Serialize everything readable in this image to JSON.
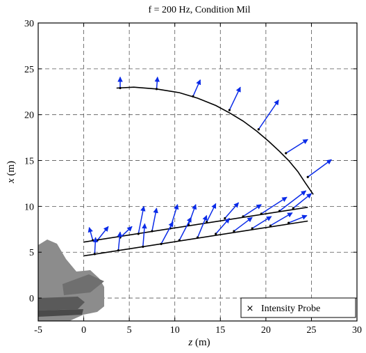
{
  "chart_data": {
    "type": "scatter",
    "title": "f = 200 Hz, Condition Mil",
    "xlabel_var": "z",
    "xlabel_unit": "(m)",
    "ylabel_var": "x",
    "ylabel_unit": "(m)",
    "xlim": [
      -5,
      30
    ],
    "ylim": [
      -2.5,
      30
    ],
    "xticks": [
      -5,
      0,
      5,
      10,
      15,
      20,
      25,
      30
    ],
    "yticks": [
      0,
      5,
      10,
      15,
      20,
      25,
      30
    ],
    "grid": true,
    "legend": {
      "label": "Intensity Probe",
      "marker": "×",
      "placement": "bottom-right"
    },
    "colors": {
      "vector": "#0a2be8",
      "line": "#000000",
      "grid": "#555555",
      "aircraft": "#8c8c8c"
    },
    "arc_array": [
      [
        3.6,
        22.9
      ],
      [
        5.5,
        23.0
      ],
      [
        8.0,
        22.8
      ],
      [
        10.5,
        22.4
      ],
      [
        12.5,
        21.8
      ],
      [
        14.5,
        21.0
      ],
      [
        16.0,
        20.2
      ],
      [
        17.5,
        19.3
      ],
      [
        19.0,
        18.2
      ],
      [
        20.3,
        17.1
      ],
      [
        21.5,
        16.0
      ],
      [
        22.5,
        15.0
      ],
      [
        23.5,
        13.8
      ],
      [
        24.3,
        12.6
      ],
      [
        25.2,
        11.3
      ]
    ],
    "upper_array": [
      [
        0.0,
        6.1
      ],
      [
        24.6,
        9.9
      ]
    ],
    "lower_array": [
      [
        0.0,
        4.6
      ],
      [
        24.6,
        8.4
      ]
    ],
    "vectors": [
      {
        "z": 4.0,
        "x": 22.9,
        "dz": 0.0,
        "dx": 1.2
      },
      {
        "z": 8.0,
        "x": 22.8,
        "dz": 0.1,
        "dx": 1.3
      },
      {
        "z": 12.0,
        "x": 22.0,
        "dz": 0.8,
        "dx": 1.8
      },
      {
        "z": 16.0,
        "x": 20.5,
        "dz": 1.2,
        "dx": 2.5
      },
      {
        "z": 19.2,
        "x": 18.4,
        "dz": 2.2,
        "dx": 3.2
      },
      {
        "z": 22.2,
        "x": 15.8,
        "dz": 2.4,
        "dx": 1.5
      },
      {
        "z": 24.6,
        "x": 13.2,
        "dz": 2.6,
        "dx": 1.9
      },
      {
        "z": 1.0,
        "x": 6.3,
        "dz": -0.4,
        "dx": 1.4
      },
      {
        "z": 1.5,
        "x": 6.3,
        "dz": 1.2,
        "dx": 1.5
      },
      {
        "z": 4.0,
        "x": 6.6,
        "dz": 1.3,
        "dx": 1.2
      },
      {
        "z": 6.0,
        "x": 7.0,
        "dz": 0.6,
        "dx": 3.0
      },
      {
        "z": 7.5,
        "x": 7.3,
        "dz": 0.5,
        "dx": 2.5
      },
      {
        "z": 9.5,
        "x": 7.6,
        "dz": 0.8,
        "dx": 2.6
      },
      {
        "z": 11.5,
        "x": 8.0,
        "dz": 0.8,
        "dx": 2.2
      },
      {
        "z": 13.5,
        "x": 8.3,
        "dz": 1.0,
        "dx": 2.0
      },
      {
        "z": 15.5,
        "x": 8.7,
        "dz": 1.5,
        "dx": 1.7
      },
      {
        "z": 17.5,
        "x": 8.9,
        "dz": 2.0,
        "dx": 1.3
      },
      {
        "z": 19.5,
        "x": 9.2,
        "dz": 2.8,
        "dx": 1.8
      },
      {
        "z": 21.5,
        "x": 9.5,
        "dz": 2.9,
        "dx": 2.2
      },
      {
        "z": 23.0,
        "x": 9.8,
        "dz": 2.0,
        "dx": 1.6
      },
      {
        "z": 1.2,
        "x": 4.8,
        "dz": 0.1,
        "dx": 1.8
      },
      {
        "z": 3.8,
        "x": 5.2,
        "dz": 0.2,
        "dx": 2.0
      },
      {
        "z": 6.5,
        "x": 5.6,
        "dz": 0.2,
        "dx": 2.5
      },
      {
        "z": 8.5,
        "x": 5.9,
        "dz": 1.3,
        "dx": 2.4
      },
      {
        "z": 10.5,
        "x": 6.3,
        "dz": 1.3,
        "dx": 2.5
      },
      {
        "z": 12.5,
        "x": 6.6,
        "dz": 1.0,
        "dx": 2.4
      },
      {
        "z": 14.5,
        "x": 7.0,
        "dz": 1.5,
        "dx": 1.7
      },
      {
        "z": 16.5,
        "x": 7.3,
        "dz": 2.0,
        "dx": 1.5
      },
      {
        "z": 18.5,
        "x": 7.6,
        "dz": 2.1,
        "dx": 1.3
      },
      {
        "z": 20.5,
        "x": 7.9,
        "dz": 2.4,
        "dx": 1.4
      },
      {
        "z": 22.5,
        "x": 8.2,
        "dz": 2.0,
        "dx": 0.8
      }
    ]
  }
}
